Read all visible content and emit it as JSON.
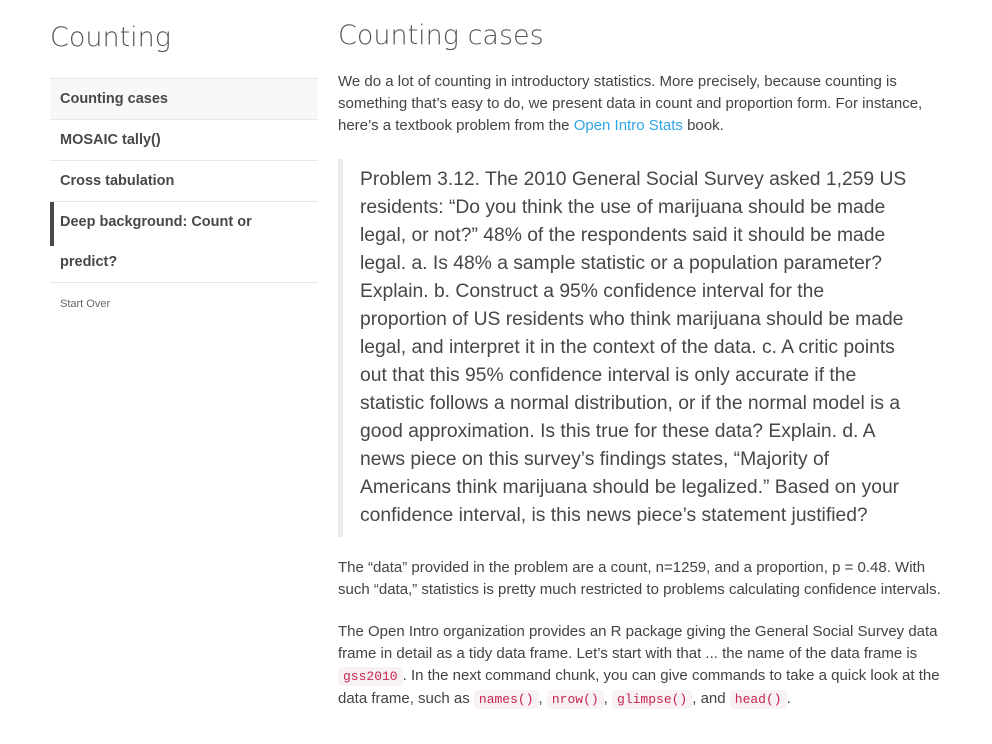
{
  "sidebar": {
    "title": "Counting",
    "topics": [
      {
        "label": "Counting cases",
        "state": "active"
      },
      {
        "label": "MOSAIC tally()",
        "state": "normal"
      },
      {
        "label": "Cross tabulation",
        "state": "normal"
      },
      {
        "label": "Deep background: Count or predict?",
        "state": "current"
      }
    ],
    "start_over_label": "Start Over"
  },
  "main": {
    "title": "Counting cases",
    "intro": {
      "text_before_link": "We do a lot of counting in introductory statistics. More precisely, because counting is something that’s easy to do, we present data in count and proportion form. For instance, here’s a textbook problem from the ",
      "link_label": "Open Intro Stats",
      "text_after_link": " book."
    },
    "problem_quote": "Problem 3.12. The 2010 General Social Survey asked 1,259 US residents: “Do you think the use of marijuana should be made legal, or not?” 48% of the respondents said it should be made legal. a. Is 48% a sample statistic or a population parameter? Explain. b. Construct a 95% confidence interval for the proportion of US residents who think marijuana should be made legal, and interpret it in the context of the data. c. A critic points out that this 95% confidence interval is only accurate if the statistic follows a normal distribution, or if the normal model is a good approximation. Is this true for these data? Explain. d. A news piece on this survey’s findings states, “Majority of Americans think marijuana should be legalized.” Based on your confidence interval, is this news piece’s statement justified?",
    "data_paragraph": "The “data” provided in the problem are a count, n=1259, and a proportion, p = 0.48. With such “data,” statistics is pretty much restricted to problems calculating confidence intervals.",
    "package_paragraph": {
      "t1": "The Open Intro organization provides an R package giving the General Social Survey data frame in detail as a tidy data frame. Let’s start with that ... the name of the data frame is ",
      "code1": "gss2010",
      "t2": ". In the next command chunk, you can give commands to take a quick look at the data frame, such as ",
      "code2": "names()",
      "t3": ", ",
      "code3": "nrow()",
      "t4": ", ",
      "code4": "glimpse()",
      "t5": ", and ",
      "code5": "head()",
      "t6": "."
    }
  },
  "colors": {
    "link_blue": "#2fa4e7",
    "code_text": "#c7254e",
    "code_bg": "#f9f2f4",
    "current_topic_bar": "#4a4a4a",
    "active_topic_bg": "#f8f8f8"
  }
}
